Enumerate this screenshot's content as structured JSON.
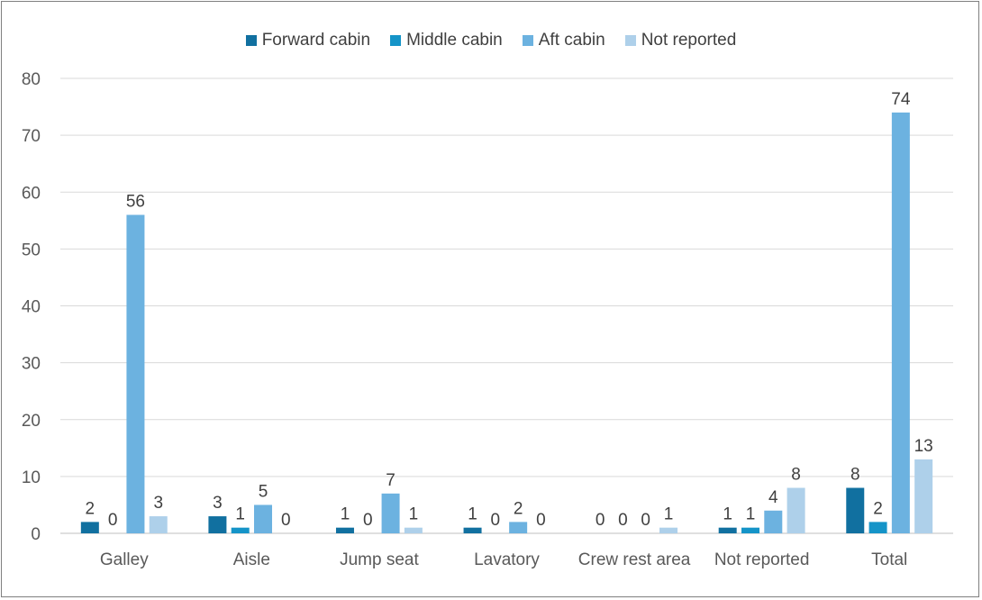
{
  "chart_data": {
    "type": "bar",
    "title": "",
    "xlabel": "",
    "ylabel": "",
    "ylim": [
      0,
      80
    ],
    "yticks": [
      0,
      10,
      20,
      30,
      40,
      50,
      60,
      70,
      80
    ],
    "grid": true,
    "legend_position": "top",
    "categories": [
      "Galley",
      "Aisle",
      "Jump seat",
      "Lavatory",
      "Crew rest area",
      "Not reported",
      "Total"
    ],
    "series": [
      {
        "name": "Forward cabin",
        "color": "#1170a0",
        "values": [
          2,
          3,
          1,
          1,
          0,
          1,
          8
        ]
      },
      {
        "name": "Middle cabin",
        "color": "#1594c8",
        "values": [
          0,
          1,
          0,
          0,
          0,
          1,
          2
        ]
      },
      {
        "name": "Aft cabin",
        "color": "#6cb2e0",
        "values": [
          56,
          5,
          7,
          2,
          0,
          4,
          74
        ]
      },
      {
        "name": "Not reported",
        "color": "#aed0ea",
        "values": [
          3,
          0,
          1,
          0,
          1,
          8,
          13
        ]
      }
    ]
  }
}
